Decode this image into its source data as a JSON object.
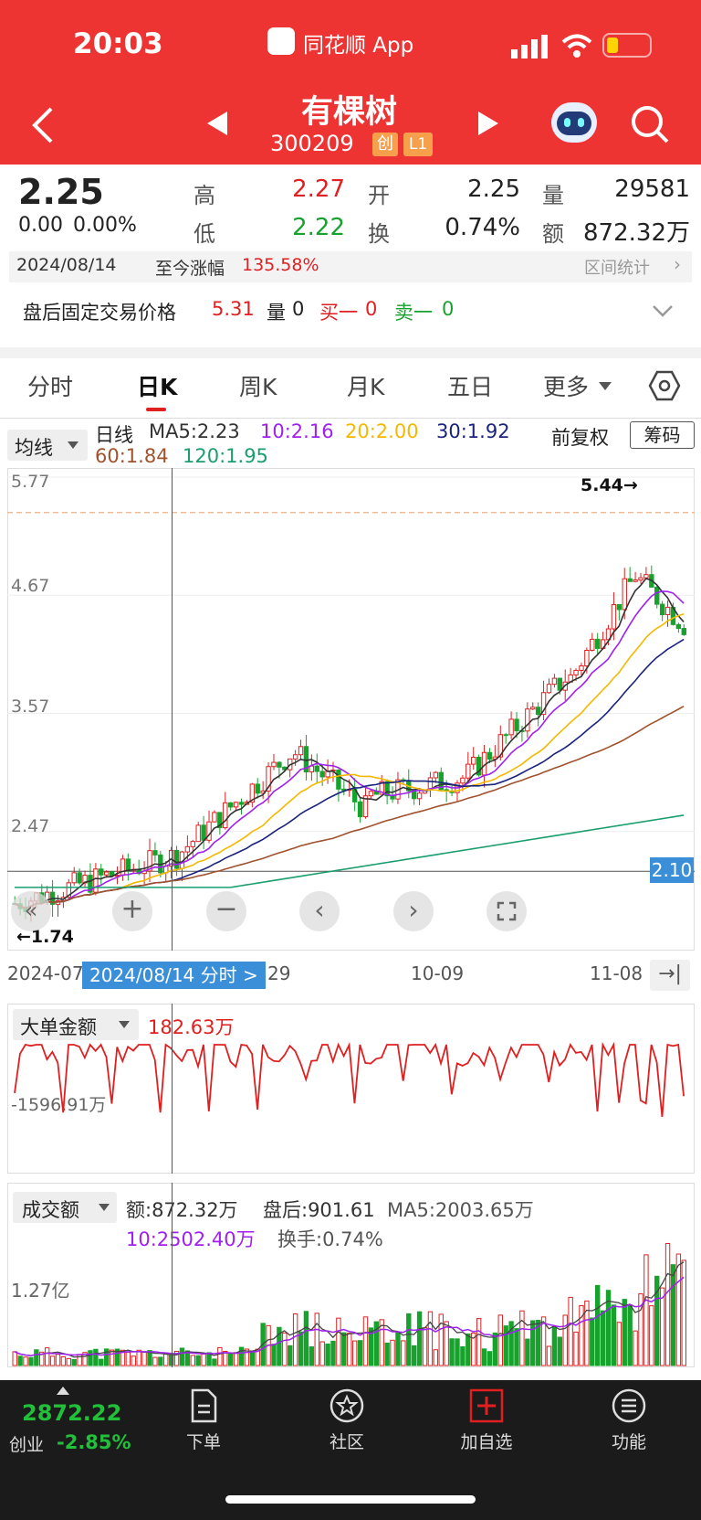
{
  "status_bar": {
    "time": "20:03",
    "app_label": "同花顺 App"
  },
  "header": {
    "stock_name": "有棵树",
    "stock_code": "300209",
    "badge_chuang": "创",
    "badge_level": "L1"
  },
  "quote": {
    "price": "2.25",
    "change": "0.00",
    "change_pct": "0.00%",
    "high_label": "高",
    "high": "2.27",
    "low_label": "低",
    "low": "2.22",
    "open_label": "开",
    "open": "2.25",
    "turnover_label": "换",
    "turnover": "0.74%",
    "volume_label": "量",
    "volume": "29581",
    "amount_label": "额",
    "amount": "872.32万",
    "date": "2024/08/14",
    "since_label": "至今涨幅",
    "since_value": "135.58%",
    "range_stats": "区间统计"
  },
  "after_hours": {
    "label": "盘后固定交易价格",
    "price": "5.31",
    "vol_label": "量",
    "vol": "0",
    "buy1_label": "买一",
    "buy1": "0",
    "sell1_label": "卖一",
    "sell1": "0"
  },
  "tabs": [
    "分时",
    "日K",
    "周K",
    "月K",
    "五日",
    "更多"
  ],
  "active_tab": 1,
  "ma_bar": {
    "selector": "均线",
    "period": "日线",
    "ma5": "MA5:2.23",
    "ma10": "10:2.16",
    "ma20": "20:2.00",
    "ma30": "30:1.92",
    "ma60": "60:1.84",
    "ma120": "120:1.95",
    "adjust": "前复权",
    "chips": "筹码"
  },
  "kline": {
    "y_ticks": [
      "5.77",
      "4.67",
      "3.57",
      "2.47"
    ],
    "max_label": "5.44→",
    "min_label": "←1.74",
    "crosshair_price": "2.10",
    "x_labels": [
      "2024-07",
      "29",
      "10-09",
      "11-08"
    ],
    "crosshair_date": "2024/08/14 分时 >"
  },
  "big_order": {
    "selector": "大单金额",
    "value": "182.63万",
    "min_label": "-1596.91万"
  },
  "amount_panel": {
    "selector": "成交额",
    "amount": "额:872.32万",
    "after": "盘后:901.61",
    "ma5": "MA5:2003.65万",
    "ma10": "10:2502.40万",
    "turnover": "换手:0.74%",
    "y_tick": "1.27亿"
  },
  "bottom_bar": {
    "index_value": "2872.22",
    "index_name": "创业",
    "index_change": "-2.85%",
    "items": [
      "下单",
      "社区",
      "加自选",
      "功能"
    ]
  },
  "colors": {
    "red": "#e02020",
    "green": "#17a22d",
    "header": "#ee3333",
    "ma5": "#333333",
    "ma10": "#a020f0",
    "ma20": "#f5b800",
    "ma30": "#1a237e",
    "ma60": "#a0522d",
    "ma120": "#1a9e6e"
  }
}
